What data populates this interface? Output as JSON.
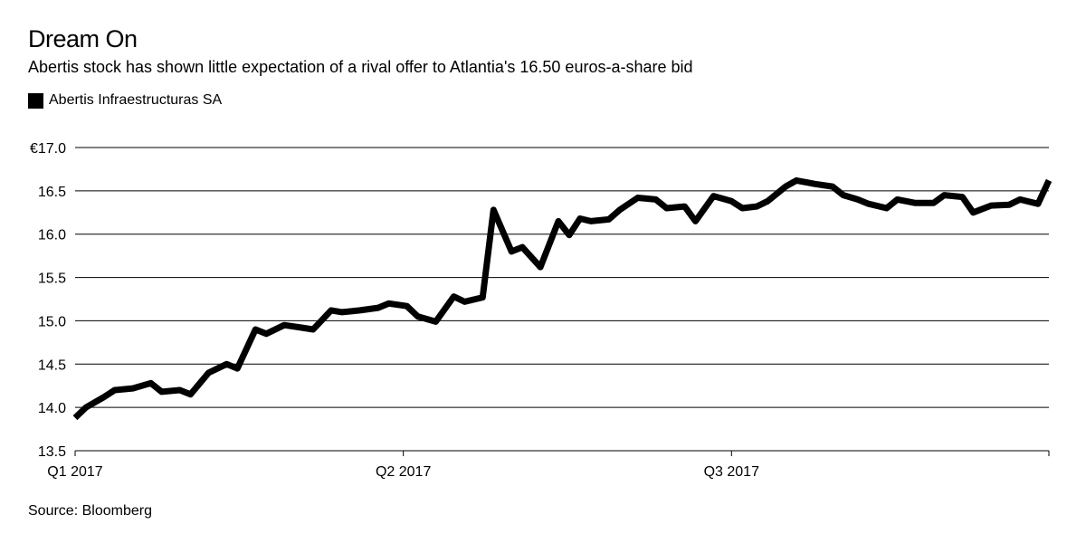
{
  "header": {
    "title": "Dream On",
    "subtitle": "Abertis stock has shown little expectation of a rival offer to Atlantia's 16.50 euros-a-share bid"
  },
  "legend": {
    "label": "Abertis Infraestructuras SA",
    "color": "#000000"
  },
  "footer": {
    "source": "Source: Bloomberg"
  },
  "chart_data": {
    "type": "line",
    "title": "Dream On",
    "subtitle": "Abertis stock has shown little expectation of a rival offer to Atlantia's 16.50 euros-a-share bid",
    "ylim": [
      13.5,
      17.0
    ],
    "yticks": [
      {
        "value": 17.0,
        "label": "€17.0"
      },
      {
        "value": 16.5,
        "label": "16.5"
      },
      {
        "value": 16.0,
        "label": "16.0"
      },
      {
        "value": 15.5,
        "label": "15.5"
      },
      {
        "value": 15.0,
        "label": "15.0"
      },
      {
        "value": 14.5,
        "label": "14.5"
      },
      {
        "value": 14.0,
        "label": "14.0"
      },
      {
        "value": 13.5,
        "label": "13.5"
      }
    ],
    "xlim": [
      "2017-01-02",
      "2017-09-29"
    ],
    "xticks": [
      {
        "date": "2017-01-02",
        "label": "Q1 2017"
      },
      {
        "date": "2017-04-03",
        "label": "Q2 2017"
      },
      {
        "date": "2017-07-03",
        "label": "Q3 2017"
      }
    ],
    "grid": true,
    "legend_position": "top-left",
    "series": [
      {
        "name": "Abertis Infraestructuras SA",
        "color": "#000000",
        "x": [
          "2017-01-02",
          "2017-01-05",
          "2017-01-10",
          "2017-01-13",
          "2017-01-18",
          "2017-01-23",
          "2017-01-26",
          "2017-01-31",
          "2017-02-03",
          "2017-02-08",
          "2017-02-13",
          "2017-02-16",
          "2017-02-21",
          "2017-02-24",
          "2017-03-01",
          "2017-03-06",
          "2017-03-09",
          "2017-03-14",
          "2017-03-17",
          "2017-03-22",
          "2017-03-27",
          "2017-03-30",
          "2017-04-04",
          "2017-04-07",
          "2017-04-12",
          "2017-04-17",
          "2017-04-20",
          "2017-04-25",
          "2017-04-28",
          "2017-05-03",
          "2017-05-06",
          "2017-05-11",
          "2017-05-16",
          "2017-05-19",
          "2017-05-22",
          "2017-05-25",
          "2017-05-30",
          "2017-06-02",
          "2017-06-07",
          "2017-06-12",
          "2017-06-15",
          "2017-06-20",
          "2017-06-23",
          "2017-06-28",
          "2017-07-03",
          "2017-07-06",
          "2017-07-10",
          "2017-07-13",
          "2017-07-18",
          "2017-07-21",
          "2017-07-26",
          "2017-07-31",
          "2017-08-03",
          "2017-08-07",
          "2017-08-10",
          "2017-08-15",
          "2017-08-18",
          "2017-08-23",
          "2017-08-28",
          "2017-08-31",
          "2017-09-05",
          "2017-09-08",
          "2017-09-13",
          "2017-09-18",
          "2017-09-21",
          "2017-09-26",
          "2017-09-29"
        ],
        "values": [
          13.88,
          14.0,
          14.12,
          14.2,
          14.22,
          14.28,
          14.18,
          14.2,
          14.15,
          14.4,
          14.5,
          14.45,
          14.9,
          14.85,
          14.95,
          14.92,
          14.9,
          15.12,
          15.1,
          15.12,
          15.15,
          15.2,
          15.17,
          15.05,
          14.99,
          15.28,
          15.22,
          15.27,
          16.28,
          15.8,
          15.85,
          15.62,
          16.15,
          15.99,
          16.18,
          16.15,
          16.17,
          16.28,
          16.42,
          16.4,
          16.3,
          16.32,
          16.15,
          16.44,
          16.38,
          16.3,
          16.32,
          16.38,
          16.55,
          16.62,
          16.58,
          16.55,
          16.45,
          16.4,
          16.35,
          16.3,
          16.4,
          16.36,
          16.36,
          16.45,
          16.43,
          16.25,
          16.33,
          16.34,
          16.4,
          16.35,
          16.62
        ]
      }
    ]
  }
}
